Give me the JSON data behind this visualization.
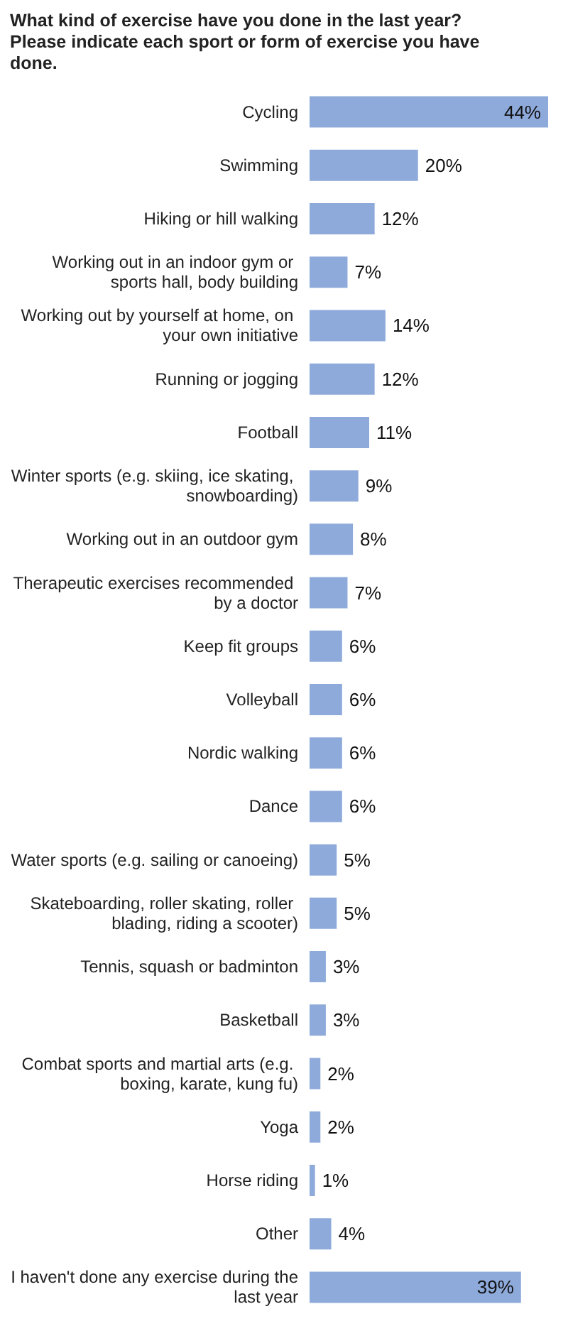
{
  "chart_data": {
    "type": "bar",
    "orientation": "horizontal",
    "title": "What kind of exercise have you done in the last year? Please indicate each sport or form of exercise you have done.",
    "categories": [
      "Cycling",
      "Swimming",
      "Hiking or hill walking",
      "Working out in an indoor gym or sports hall, body building",
      "Working out by yourself at home, on your own initiative",
      "Running or jogging",
      "Football",
      "Winter sports (e.g. skiing, ice skating, snowboarding)",
      "Working out in an outdoor gym",
      "Therapeutic exercises recommended by a doctor",
      "Keep fit groups",
      "Volleyball",
      "Nordic walking",
      "Dance",
      "Water sports (e.g. sailing or canoeing)",
      "Skateboarding, roller skating, roller blading, riding a scooter)",
      "Tennis, squash or badminton",
      "Basketball",
      "Combat sports and martial arts (e.g. boxing, karate, kung fu)",
      "Yoga",
      "Horse riding",
      "Other",
      "I haven't done any exercise during the last year"
    ],
    "values": [
      44,
      20,
      12,
      7,
      14,
      12,
      11,
      9,
      8,
      7,
      6,
      6,
      6,
      6,
      5,
      5,
      3,
      3,
      2,
      2,
      1,
      4,
      39
    ],
    "value_labels": [
      "44%",
      "20%",
      "12%",
      "7%",
      "14%",
      "12%",
      "11%",
      "9%",
      "8%",
      "7%",
      "6%",
      "6%",
      "6%",
      "6%",
      "5%",
      "5%",
      "3%",
      "3%",
      "2%",
      "2%",
      "1%",
      "4%",
      "39%"
    ],
    "color": "#8eaadb"
  }
}
